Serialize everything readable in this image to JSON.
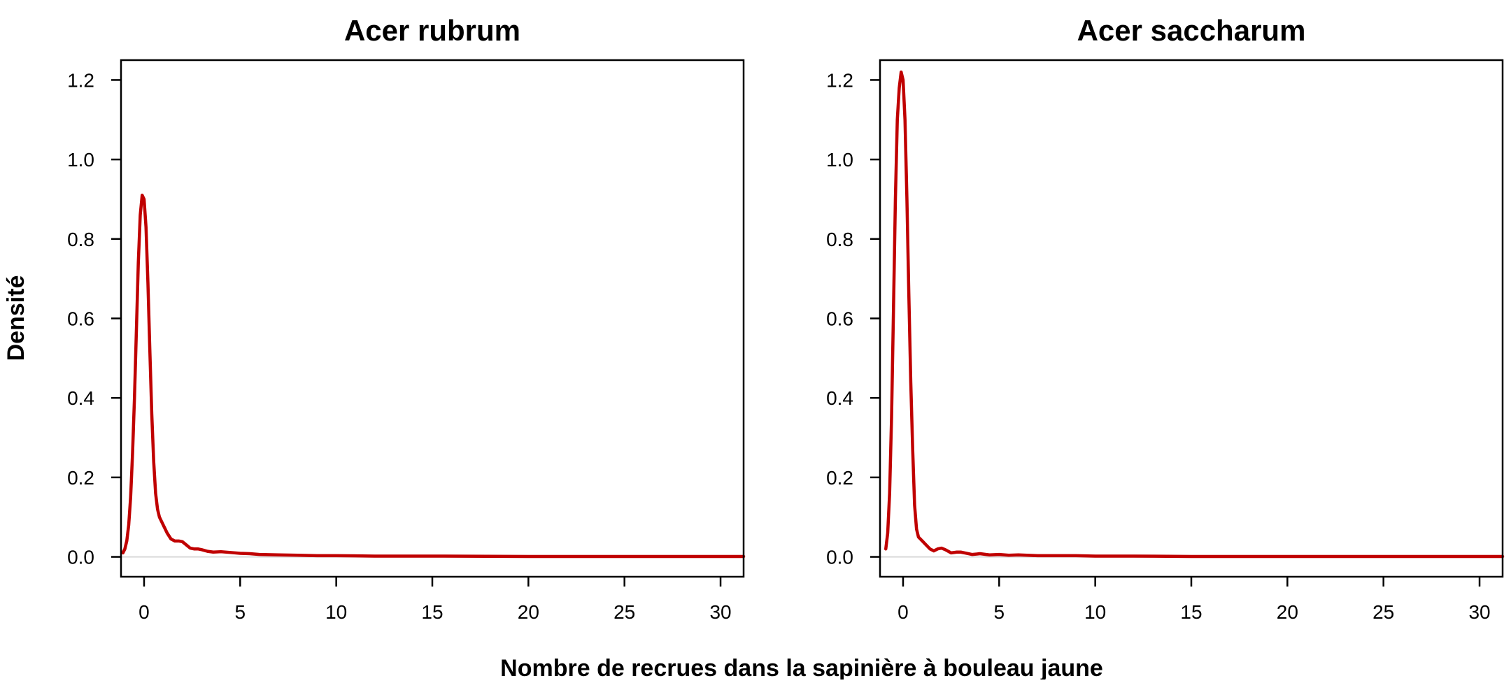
{
  "figure": {
    "xlabel": "Nombre de recrues dans la sapinière à bouleau jaune",
    "ylabel": "Densité"
  },
  "style": {
    "line_color": "#c00000",
    "baseline_color": "#d9d9d9"
  },
  "chart_data": [
    {
      "type": "line",
      "title": "Acer rubrum",
      "xlim": [
        -1.2,
        31.2
      ],
      "ylim": [
        -0.05,
        1.25
      ],
      "x_ticks": [
        0,
        5,
        10,
        15,
        20,
        25,
        30
      ],
      "y_ticks": [
        0.0,
        0.2,
        0.4,
        0.6,
        0.8,
        1.0,
        1.2
      ],
      "x_tick_labels": [
        "0",
        "5",
        "10",
        "15",
        "20",
        "25",
        "30"
      ],
      "y_tick_labels": [
        "0.0",
        "0.2",
        "0.4",
        "0.6",
        "0.8",
        "1.0",
        "1.2"
      ],
      "grid": false,
      "series": [
        {
          "x": [
            -1.1,
            -1.0,
            -0.9,
            -0.8,
            -0.7,
            -0.6,
            -0.5,
            -0.4,
            -0.3,
            -0.2,
            -0.1,
            0.0,
            0.1,
            0.2,
            0.3,
            0.4,
            0.5,
            0.6,
            0.7,
            0.8,
            0.9,
            1.0,
            1.2,
            1.4,
            1.6,
            1.8,
            2.0,
            2.2,
            2.4,
            2.6,
            2.8,
            3.0,
            3.3,
            3.6,
            4.0,
            4.5,
            5.0,
            5.5,
            6.0,
            7.0,
            8.0,
            9.0,
            10.0,
            12.0,
            15.0,
            20.0,
            25.0,
            30.0,
            31.2
          ],
          "y": [
            0.01,
            0.02,
            0.04,
            0.08,
            0.15,
            0.26,
            0.4,
            0.57,
            0.74,
            0.86,
            0.91,
            0.9,
            0.83,
            0.69,
            0.52,
            0.36,
            0.24,
            0.16,
            0.12,
            0.1,
            0.09,
            0.08,
            0.06,
            0.045,
            0.04,
            0.04,
            0.038,
            0.03,
            0.022,
            0.02,
            0.02,
            0.018,
            0.014,
            0.012,
            0.013,
            0.011,
            0.009,
            0.008,
            0.006,
            0.005,
            0.004,
            0.003,
            0.003,
            0.002,
            0.002,
            0.001,
            0.001,
            0.001,
            0.001
          ]
        }
      ]
    },
    {
      "type": "line",
      "title": "Acer saccharum",
      "xlim": [
        -1.2,
        31.2
      ],
      "ylim": [
        -0.05,
        1.25
      ],
      "x_ticks": [
        0,
        5,
        10,
        15,
        20,
        25,
        30
      ],
      "y_ticks": [
        0.0,
        0.2,
        0.4,
        0.6,
        0.8,
        1.0,
        1.2
      ],
      "x_tick_labels": [
        "0",
        "5",
        "10",
        "15",
        "20",
        "25",
        "30"
      ],
      "y_tick_labels": [
        "0.0",
        "0.2",
        "0.4",
        "0.6",
        "0.8",
        "1.0",
        "1.2"
      ],
      "grid": false,
      "series": [
        {
          "x": [
            -0.9,
            -0.8,
            -0.7,
            -0.6,
            -0.5,
            -0.4,
            -0.3,
            -0.2,
            -0.1,
            0.0,
            0.1,
            0.2,
            0.3,
            0.4,
            0.5,
            0.6,
            0.7,
            0.8,
            0.9,
            1.0,
            1.2,
            1.4,
            1.6,
            1.8,
            2.0,
            2.2,
            2.5,
            2.8,
            3.0,
            3.3,
            3.6,
            4.0,
            4.5,
            5.0,
            5.5,
            6.0,
            7.0,
            8.0,
            9.0,
            10.0,
            12.0,
            15.0,
            20.0,
            25.0,
            30.0,
            31.2
          ],
          "y": [
            0.02,
            0.06,
            0.16,
            0.35,
            0.62,
            0.9,
            1.1,
            1.18,
            1.22,
            1.2,
            1.1,
            0.9,
            0.66,
            0.44,
            0.27,
            0.13,
            0.07,
            0.05,
            0.045,
            0.04,
            0.03,
            0.02,
            0.015,
            0.02,
            0.022,
            0.018,
            0.01,
            0.012,
            0.012,
            0.009,
            0.006,
            0.008,
            0.005,
            0.006,
            0.004,
            0.005,
            0.003,
            0.003,
            0.003,
            0.002,
            0.002,
            0.001,
            0.001,
            0.001,
            0.001,
            0.001
          ]
        }
      ]
    }
  ]
}
